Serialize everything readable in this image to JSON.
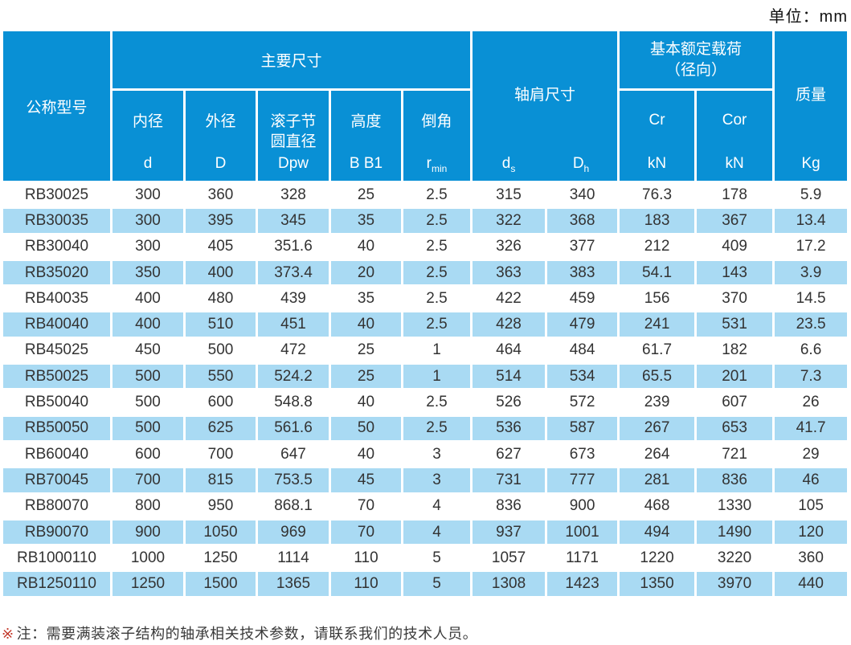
{
  "unit_label": "单位：mm",
  "table": {
    "header": {
      "model": "公称型号",
      "main_group": "主要尺寸",
      "shoulder_group": "轴肩尺寸",
      "load_group": "基本额定载荷\n（径向）",
      "mass_label": "质量",
      "mass_unit": "Kg",
      "sub_cols": [
        {
          "label": "内径",
          "base": "d",
          "sub": ""
        },
        {
          "label": "外径",
          "base": "D",
          "sub": ""
        },
        {
          "label": "滚子节\n圆直径",
          "base": "Dpw",
          "sub": ""
        },
        {
          "label": "高度",
          "base": "B B1",
          "sub": ""
        },
        {
          "label": "倒角",
          "base": "r",
          "sub": "min"
        }
      ],
      "shoulder_cols": [
        {
          "base": "d",
          "sub": "s"
        },
        {
          "base": "D",
          "sub": "h"
        }
      ],
      "load_cols": [
        {
          "label": "Cr",
          "unit": "kN"
        },
        {
          "label": "Cor",
          "unit": "kN"
        }
      ]
    },
    "rows": [
      {
        "model": "RB30025",
        "d": "300",
        "D": "360",
        "Dpw": "328",
        "B": "25",
        "r": "2.5",
        "ds": "315",
        "Dh": "340",
        "Cr": "76.3",
        "Cor": "178",
        "kg": "5.9"
      },
      {
        "model": "RB30035",
        "d": "300",
        "D": "395",
        "Dpw": "345",
        "B": "35",
        "r": "2.5",
        "ds": "322",
        "Dh": "368",
        "Cr": "183",
        "Cor": "367",
        "kg": "13.4"
      },
      {
        "model": "RB30040",
        "d": "300",
        "D": "405",
        "Dpw": "351.6",
        "B": "40",
        "r": "2.5",
        "ds": "326",
        "Dh": "377",
        "Cr": "212",
        "Cor": "409",
        "kg": "17.2"
      },
      {
        "model": "RB35020",
        "d": "350",
        "D": "400",
        "Dpw": "373.4",
        "B": "20",
        "r": "2.5",
        "ds": "363",
        "Dh": "383",
        "Cr": "54.1",
        "Cor": "143",
        "kg": "3.9"
      },
      {
        "model": "RB40035",
        "d": "400",
        "D": "480",
        "Dpw": "439",
        "B": "35",
        "r": "2.5",
        "ds": "422",
        "Dh": "459",
        "Cr": "156",
        "Cor": "370",
        "kg": "14.5"
      },
      {
        "model": "RB40040",
        "d": "400",
        "D": "510",
        "Dpw": "451",
        "B": "40",
        "r": "2.5",
        "ds": "428",
        "Dh": "479",
        "Cr": "241",
        "Cor": "531",
        "kg": "23.5"
      },
      {
        "model": "RB45025",
        "d": "450",
        "D": "500",
        "Dpw": "472",
        "B": "25",
        "r": "1",
        "ds": "464",
        "Dh": "484",
        "Cr": "61.7",
        "Cor": "182",
        "kg": "6.6"
      },
      {
        "model": "RB50025",
        "d": "500",
        "D": "550",
        "Dpw": "524.2",
        "B": "25",
        "r": "1",
        "ds": "514",
        "Dh": "534",
        "Cr": "65.5",
        "Cor": "201",
        "kg": "7.3"
      },
      {
        "model": "RB50040",
        "d": "500",
        "D": "600",
        "Dpw": "548.8",
        "B": "40",
        "r": "2.5",
        "ds": "526",
        "Dh": "572",
        "Cr": "239",
        "Cor": "607",
        "kg": "26"
      },
      {
        "model": "RB50050",
        "d": "500",
        "D": "625",
        "Dpw": "561.6",
        "B": "50",
        "r": "2.5",
        "ds": "536",
        "Dh": "587",
        "Cr": "267",
        "Cor": "653",
        "kg": "41.7"
      },
      {
        "model": "RB60040",
        "d": "600",
        "D": "700",
        "Dpw": "647",
        "B": "40",
        "r": "3",
        "ds": "627",
        "Dh": "673",
        "Cr": "264",
        "Cor": "721",
        "kg": "29"
      },
      {
        "model": "RB70045",
        "d": "700",
        "D": "815",
        "Dpw": "753.5",
        "B": "45",
        "r": "3",
        "ds": "731",
        "Dh": "777",
        "Cr": "281",
        "Cor": "836",
        "kg": "46"
      },
      {
        "model": "RB80070",
        "d": "800",
        "D": "950",
        "Dpw": "868.1",
        "B": "70",
        "r": "4",
        "ds": "836",
        "Dh": "900",
        "Cr": "468",
        "Cor": "1330",
        "kg": "105"
      },
      {
        "model": "RB90070",
        "d": "900",
        "D": "1050",
        "Dpw": "969",
        "B": "70",
        "r": "4",
        "ds": "937",
        "Dh": "1001",
        "Cr": "494",
        "Cor": "1490",
        "kg": "120"
      },
      {
        "model": "RB1000110",
        "d": "1000",
        "D": "1250",
        "Dpw": "1114",
        "B": "110",
        "r": "5",
        "ds": "1057",
        "Dh": "1171",
        "Cr": "1220",
        "Cor": "3220",
        "kg": "360"
      },
      {
        "model": "RB1250110",
        "d": "1250",
        "D": "1500",
        "Dpw": "1365",
        "B": "110",
        "r": "5",
        "ds": "1308",
        "Dh": "1423",
        "Cr": "1350",
        "Cor": "3970",
        "kg": "440"
      }
    ]
  },
  "note": {
    "marker": "※",
    "text": "注：需要满装滚子结构的轴承相关技术参数，请联系我们的技术人员。"
  },
  "colors": {
    "header_blue": "#0990D5",
    "stripe_blue": "#A9DAF3",
    "note_marker_red": "#C3392B"
  }
}
